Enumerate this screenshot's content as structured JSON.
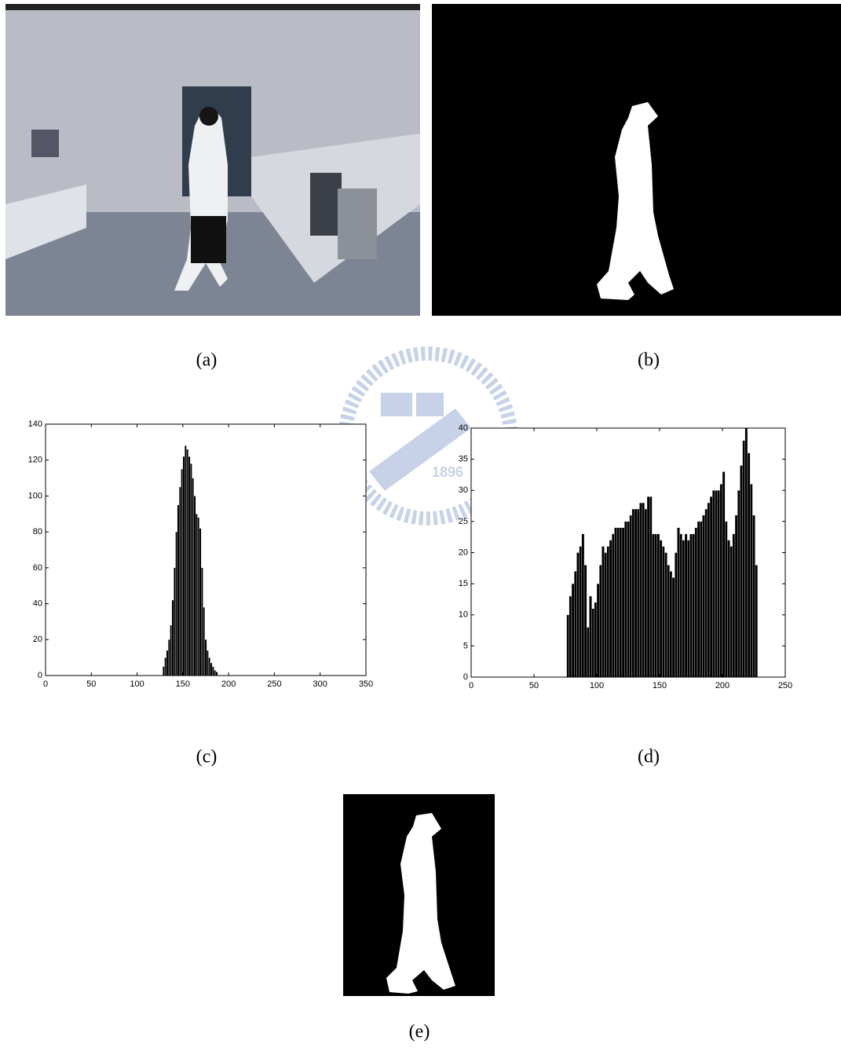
{
  "captions": [
    "(a)",
    "(b)",
    "(c)",
    "(d)",
    "(e)"
  ],
  "watermark": "1896",
  "chart_data": [
    {
      "type": "histogram",
      "color": "#000000",
      "xlim": [
        0,
        350
      ],
      "xticks": [
        0,
        50,
        100,
        150,
        200,
        250,
        300,
        350
      ],
      "ylim": [
        0,
        140
      ],
      "yticks": [
        0,
        20,
        40,
        60,
        80,
        100,
        120,
        140
      ],
      "bins": [
        128,
        130,
        132,
        134,
        136,
        138,
        140,
        142,
        144,
        146,
        148,
        150,
        152,
        154,
        156,
        158,
        160,
        162,
        164,
        166,
        168,
        170,
        172,
        174,
        176,
        178,
        180,
        182,
        184,
        186,
        188
      ],
      "values": [
        5,
        10,
        14,
        20,
        28,
        42,
        60,
        80,
        95,
        105,
        115,
        122,
        128,
        126,
        122,
        118,
        110,
        100,
        90,
        88,
        82,
        60,
        38,
        20,
        14,
        10,
        7,
        5,
        3,
        2
      ]
    },
    {
      "type": "histogram",
      "color": "#000000",
      "xlim": [
        0,
        250
      ],
      "xticks": [
        0,
        50,
        100,
        150,
        200,
        250
      ],
      "ylim": [
        0,
        40
      ],
      "yticks": [
        0,
        5,
        10,
        15,
        20,
        25,
        30,
        35,
        40
      ],
      "bins": [
        76,
        78,
        80,
        82,
        84,
        86,
        88,
        90,
        92,
        94,
        96,
        98,
        100,
        102,
        104,
        106,
        108,
        110,
        112,
        114,
        116,
        118,
        120,
        122,
        124,
        126,
        128,
        130,
        132,
        134,
        136,
        138,
        140,
        142,
        144,
        146,
        148,
        150,
        152,
        154,
        156,
        158,
        160,
        162,
        164,
        166,
        168,
        170,
        172,
        174,
        176,
        178,
        180,
        182,
        184,
        186,
        188,
        190,
        192,
        194,
        196,
        198,
        200,
        202,
        204,
        206,
        208,
        210,
        212,
        214,
        216,
        218,
        220,
        222,
        224,
        226,
        228
      ],
      "values": [
        10,
        13,
        15,
        17,
        20,
        21,
        23,
        18,
        8,
        13,
        11,
        12,
        15,
        18,
        21,
        20,
        21,
        22,
        23,
        24,
        24,
        24,
        24,
        25,
        25,
        26,
        27,
        27,
        27,
        28,
        28,
        27,
        29,
        29,
        23,
        23,
        23,
        22,
        21,
        20,
        18,
        17,
        16,
        20,
        24,
        23,
        22,
        23,
        22,
        23,
        23,
        24,
        25,
        25,
        26,
        27,
        28,
        29,
        30,
        30,
        30,
        31,
        33,
        25,
        22,
        21,
        23,
        26,
        30,
        34,
        38,
        40,
        36,
        31,
        26,
        18
      ]
    }
  ]
}
